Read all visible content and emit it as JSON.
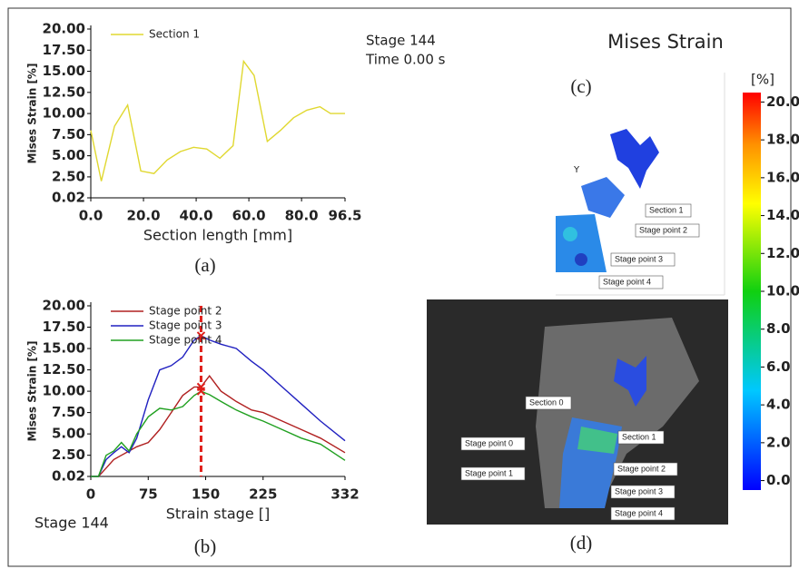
{
  "panel_labels": [
    "(a)",
    "(b)",
    "(c)",
    "(d)"
  ],
  "stage_info": {
    "stage": "Stage 144",
    "time": "Time 0.00 s"
  },
  "chart_data": [
    {
      "type": "line",
      "xlabel": "Section length [mm]",
      "ylabel": "Mises Strain [%]",
      "x": [
        0,
        4,
        9,
        14,
        19,
        24,
        29,
        34,
        39,
        44,
        49,
        54,
        58,
        62,
        67,
        72,
        77,
        82,
        87,
        91,
        96.5
      ],
      "series": [
        {
          "name": "Section 1",
          "color": "#e0d830",
          "values": [
            8.0,
            2.0,
            8.5,
            11.0,
            3.2,
            2.9,
            4.5,
            5.5,
            6.0,
            5.8,
            4.7,
            6.2,
            16.2,
            14.5,
            6.7,
            8.0,
            9.5,
            10.4,
            10.8,
            10.0,
            10.0
          ]
        }
      ],
      "xlim": [
        0,
        96.5
      ],
      "xticks": [
        {
          "value": 0,
          "label": "0.0"
        },
        {
          "value": 20,
          "label": "20.0"
        },
        {
          "value": 40,
          "label": "40.0"
        },
        {
          "value": 60,
          "label": "60.0"
        },
        {
          "value": 80,
          "label": "80.0"
        },
        96.5
      ],
      "ylim": [
        0.02,
        20
      ],
      "yticks": [
        {
          "value": 0.02,
          "label": "0.02"
        },
        {
          "value": 2.5,
          "label": "2.50"
        },
        {
          "value": 5,
          "label": "5.00"
        },
        {
          "value": 7.5,
          "label": "7.50"
        },
        {
          "value": 10,
          "label": "10.00"
        },
        {
          "value": 12.5,
          "label": "12.50"
        },
        {
          "value": 15,
          "label": "15.00"
        },
        {
          "value": 17.5,
          "label": "17.50"
        },
        {
          "value": 20,
          "label": "20.00"
        }
      ]
    },
    {
      "type": "line",
      "xlabel": "Strain stage []",
      "ylabel": "Mises Strain [%]",
      "x": [
        0,
        10,
        20,
        30,
        40,
        50,
        60,
        75,
        90,
        105,
        120,
        135,
        144,
        155,
        170,
        190,
        210,
        225,
        250,
        275,
        300,
        332
      ],
      "series": [
        {
          "name": "Stage point 2",
          "color": "#b02020",
          "values": [
            0.02,
            0.02,
            1.0,
            2.0,
            2.5,
            3.0,
            3.5,
            4.0,
            5.5,
            7.5,
            9.5,
            10.5,
            10.5,
            11.8,
            10.0,
            8.8,
            7.8,
            7.5,
            6.5,
            5.5,
            4.5,
            2.8
          ]
        },
        {
          "name": "Stage point 3",
          "color": "#2020c0",
          "values": [
            0.02,
            0.02,
            2.0,
            2.8,
            3.5,
            2.8,
            4.5,
            9.0,
            12.5,
            13.0,
            14.0,
            16.0,
            16.5,
            16.0,
            15.5,
            15.0,
            13.5,
            12.5,
            10.5,
            8.5,
            6.5,
            4.2
          ]
        },
        {
          "name": "Stage point 4",
          "color": "#20a020",
          "values": [
            0.02,
            0.02,
            2.5,
            3.0,
            4.0,
            3.0,
            5.0,
            7.0,
            8.0,
            7.8,
            8.2,
            9.5,
            10.0,
            9.6,
            8.8,
            7.8,
            7.0,
            6.5,
            5.5,
            4.5,
            3.8,
            1.9
          ]
        }
      ],
      "xlim": [
        0,
        332
      ],
      "xticks": [
        0,
        75,
        150,
        225,
        332
      ],
      "ylim": [
        0.02,
        20
      ],
      "yticks": [
        {
          "value": 0.02,
          "label": "0.02"
        },
        {
          "value": 2.5,
          "label": "2.50"
        },
        {
          "value": 5,
          "label": "5.00"
        },
        {
          "value": 7.5,
          "label": "7.50"
        },
        {
          "value": 10,
          "label": "10.00"
        },
        {
          "value": 12.5,
          "label": "12.50"
        },
        {
          "value": 15,
          "label": "15.00"
        },
        {
          "value": 17.5,
          "label": "17.50"
        },
        {
          "value": 20,
          "label": "20.00"
        }
      ],
      "stage": 144,
      "stage_color": "#e0201b",
      "stage_label": "Stage 144"
    }
  ],
  "contour": {
    "title": "Mises Strain",
    "axis_indicator": "Y",
    "annotations_c": [
      "Section 1",
      "Stage point 2",
      "Stage point 3",
      "Stage point 4"
    ],
    "annotations_d": [
      "Section 0",
      "Stage point 0",
      "Section 1",
      "Stage point 1",
      "Stage point 2",
      "Stage point 3",
      "Stage point 4"
    ],
    "colorbar": {
      "label": "[%]",
      "lim": [
        -0.5,
        20.5
      ],
      "ticks": [
        {
          "value": 20,
          "label": "20.0"
        },
        {
          "value": 18,
          "label": "18.0"
        },
        {
          "value": 16,
          "label": "16.0"
        },
        {
          "value": 14,
          "label": "14.0"
        },
        {
          "value": 12,
          "label": "12.0"
        },
        {
          "value": 10,
          "label": "10.0"
        },
        {
          "value": 8,
          "label": "8.0"
        },
        {
          "value": 6,
          "label": "6.0"
        },
        {
          "value": 4,
          "label": "4.0"
        },
        {
          "value": 2,
          "label": "2.0"
        },
        {
          "value": 0,
          "label": "0.0"
        }
      ]
    }
  }
}
